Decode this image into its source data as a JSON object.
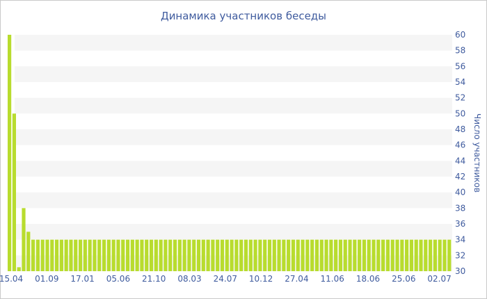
{
  "chart_data": {
    "type": "bar",
    "title": "Динамика участников беседы",
    "xlabel": "",
    "ylabel": "Число участников",
    "y_axis_position": "right",
    "ylim": [
      30,
      60
    ],
    "y_ticks": [
      30,
      32,
      34,
      36,
      38,
      40,
      42,
      44,
      46,
      48,
      50,
      52,
      54,
      56,
      58,
      60
    ],
    "x_tick_labels": [
      "15.04",
      "01.09",
      "17.01",
      "05.06",
      "21.10",
      "08.03",
      "24.07",
      "10.12",
      "27.04",
      "11.06",
      "18.06",
      "25.06",
      "02.07"
    ],
    "bar_color": "#b8dc2e",
    "band_color": "#f5f5f5",
    "legend": "none",
    "values": [
      60,
      50,
      30.5,
      38,
      35,
      34,
      34,
      34,
      34,
      34,
      34,
      34,
      34,
      34,
      34,
      34,
      34,
      34,
      34,
      34,
      34,
      34,
      34,
      34,
      34,
      34,
      34,
      34,
      34,
      34,
      34,
      34,
      34,
      34,
      34,
      34,
      34,
      34,
      34,
      34,
      34,
      34,
      34,
      34,
      34,
      34,
      34,
      34,
      34,
      34,
      34,
      34,
      34,
      34,
      34,
      34,
      34,
      34,
      34,
      34,
      34,
      34,
      34,
      34,
      34,
      34,
      34,
      34,
      34,
      34,
      34,
      34,
      34,
      34,
      34,
      34,
      34,
      34,
      34,
      34,
      34,
      34,
      34,
      34,
      34,
      34,
      34,
      34,
      34,
      34,
      34,
      34,
      34,
      34
    ]
  }
}
